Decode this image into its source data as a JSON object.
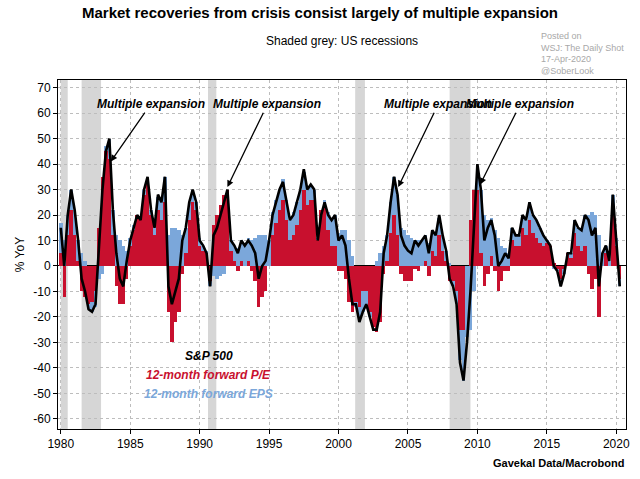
{
  "chart_data": {
    "type": "bar",
    "title": "Market recoveries from crisis consist largely of multiple expansion",
    "subtitle": "Shaded grey: US recessions",
    "y_label": "% YoY",
    "source": "Gavekal Data/Macrobond",
    "watermark": [
      "Posted on",
      "WSJ: The Daily Shot",
      "17-Apr-2020",
      "@SoberLook"
    ],
    "stacked": true,
    "grid": true,
    "x": [
      1980,
      1980.25,
      1980.5,
      1980.75,
      1981,
      1981.25,
      1981.5,
      1981.75,
      1982,
      1982.25,
      1982.5,
      1982.75,
      1983,
      1983.25,
      1983.5,
      1983.75,
      1984,
      1984.25,
      1984.5,
      1984.75,
      1985,
      1985.25,
      1985.5,
      1985.75,
      1986,
      1986.25,
      1986.5,
      1986.75,
      1987,
      1987.25,
      1987.5,
      1987.75,
      1988,
      1988.25,
      1988.5,
      1988.75,
      1989,
      1989.25,
      1989.5,
      1989.75,
      1990,
      1990.25,
      1990.5,
      1990.75,
      1991,
      1991.25,
      1991.5,
      1991.75,
      1992,
      1992.25,
      1992.5,
      1992.75,
      1993,
      1993.25,
      1993.5,
      1993.75,
      1994,
      1994.25,
      1994.5,
      1994.75,
      1995,
      1995.25,
      1995.5,
      1995.75,
      1996,
      1996.25,
      1996.5,
      1996.75,
      1997,
      1997.25,
      1997.5,
      1997.75,
      1998,
      1998.25,
      1998.5,
      1998.75,
      1999,
      1999.25,
      1999.5,
      1999.75,
      2000,
      2000.25,
      2000.5,
      2000.75,
      2001,
      2001.25,
      2001.5,
      2001.75,
      2002,
      2002.25,
      2002.5,
      2002.75,
      2003,
      2003.25,
      2003.5,
      2003.75,
      2004,
      2004.25,
      2004.5,
      2004.75,
      2005,
      2005.25,
      2005.5,
      2005.75,
      2006,
      2006.25,
      2006.5,
      2006.75,
      2007,
      2007.25,
      2007.5,
      2007.75,
      2008,
      2008.25,
      2008.5,
      2008.75,
      2009,
      2009.25,
      2009.5,
      2009.75,
      2010,
      2010.25,
      2010.5,
      2010.75,
      2011,
      2011.25,
      2011.5,
      2011.75,
      2012,
      2012.25,
      2012.5,
      2012.75,
      2013,
      2013.25,
      2013.5,
      2013.75,
      2014,
      2014.25,
      2014.5,
      2014.75,
      2015,
      2015.25,
      2015.5,
      2015.75,
      2016,
      2016.25,
      2016.5,
      2016.75,
      2017,
      2017.25,
      2017.5,
      2017.75,
      2018,
      2018.25,
      2018.5,
      2018.75,
      2019,
      2019.25,
      2019.5,
      2019.75,
      2020,
      2020.25
    ],
    "series": [
      {
        "name": "S&P 500",
        "type": "line",
        "color": "#000000",
        "values": [
          15,
          0,
          20,
          30,
          22,
          10,
          -5,
          -10,
          -17,
          -18,
          -15,
          10,
          30,
          45,
          50,
          22,
          5,
          -5,
          -8,
          2,
          10,
          15,
          20,
          18,
          30,
          35,
          22,
          15,
          28,
          25,
          35,
          -8,
          -15,
          -10,
          -5,
          10,
          15,
          25,
          30,
          25,
          10,
          8,
          5,
          -8,
          12,
          15,
          20,
          25,
          30,
          10,
          8,
          5,
          10,
          8,
          10,
          8,
          5,
          -5,
          0,
          2,
          10,
          20,
          25,
          30,
          33,
          25,
          18,
          20,
          25,
          30,
          38,
          30,
          32,
          30,
          10,
          20,
          25,
          20,
          18,
          20,
          10,
          12,
          8,
          -5,
          -15,
          -15,
          -22,
          -18,
          -15,
          -20,
          -25,
          -25,
          -18,
          5,
          12,
          25,
          35,
          28,
          12,
          8,
          6,
          5,
          10,
          8,
          10,
          12,
          5,
          14,
          12,
          20,
          12,
          6,
          -5,
          -8,
          -15,
          -38,
          -45,
          -30,
          -10,
          15,
          40,
          30,
          10,
          15,
          18,
          12,
          0,
          2,
          5,
          3,
          15,
          12,
          12,
          20,
          18,
          25,
          20,
          18,
          15,
          12,
          10,
          8,
          0,
          -2,
          -8,
          -3,
          5,
          5,
          18,
          15,
          14,
          20,
          18,
          12,
          15,
          -8,
          5,
          8,
          2,
          28,
          10,
          -8
        ]
      },
      {
        "name": "12-month forward P/E",
        "type": "bar",
        "color": "#c8102e",
        "values": [
          5,
          -12,
          12,
          22,
          12,
          2,
          -10,
          -12,
          -15,
          -14,
          -10,
          15,
          35,
          45,
          42,
          12,
          -8,
          -15,
          -15,
          -5,
          8,
          14,
          20,
          18,
          28,
          32,
          20,
          12,
          22,
          18,
          25,
          -18,
          -30,
          -22,
          -18,
          -3,
          5,
          18,
          25,
          22,
          8,
          6,
          5,
          -6,
          16,
          20,
          24,
          28,
          30,
          6,
          2,
          -2,
          2,
          0,
          2,
          -2,
          -6,
          -16,
          -12,
          -10,
          0,
          12,
          17,
          22,
          26,
          18,
          10,
          12,
          16,
          22,
          30,
          24,
          26,
          26,
          10,
          22,
          23,
          14,
          8,
          8,
          -2,
          -2,
          -5,
          -14,
          -18,
          -14,
          -16,
          -10,
          -10,
          -18,
          -24,
          -26,
          -22,
          -3,
          2,
          13,
          20,
          12,
          -3,
          -6,
          -6,
          -6,
          -1,
          -2,
          0,
          2,
          -4,
          6,
          4,
          12,
          6,
          2,
          -6,
          -6,
          -10,
          -25,
          -25,
          0,
          18,
          30,
          30,
          5,
          -8,
          -3,
          4,
          -2,
          -10,
          -6,
          -2,
          -2,
          10,
          8,
          8,
          15,
          12,
          18,
          13,
          11,
          9,
          8,
          9,
          8,
          1,
          -1,
          -5,
          -1,
          5,
          3,
          13,
          8,
          6,
          8,
          -3,
          -9,
          -5,
          -20,
          0,
          5,
          0,
          22,
          8,
          -5
        ]
      },
      {
        "name": "12-month forward EPS",
        "type": "bar",
        "color": "#7ba7da",
        "values": [
          12,
          10,
          8,
          8,
          10,
          8,
          5,
          2,
          -2,
          -4,
          -6,
          -5,
          -3,
          2,
          8,
          10,
          12,
          10,
          8,
          6,
          3,
          2,
          0,
          1,
          2,
          2,
          2,
          3,
          5,
          7,
          10,
          12,
          15,
          15,
          14,
          12,
          10,
          7,
          5,
          3,
          3,
          2,
          1,
          -2,
          -4,
          -5,
          -4,
          -3,
          0,
          4,
          6,
          7,
          8,
          9,
          9,
          10,
          11,
          12,
          12,
          12,
          10,
          9,
          9,
          8,
          8,
          8,
          8,
          9,
          9,
          8,
          7,
          6,
          5,
          4,
          1,
          0,
          3,
          7,
          10,
          12,
          13,
          14,
          14,
          10,
          4,
          -2,
          -6,
          -8,
          -5,
          -2,
          0,
          2,
          5,
          8,
          10,
          12,
          15,
          16,
          15,
          14,
          12,
          11,
          10,
          10,
          10,
          10,
          9,
          8,
          8,
          7,
          6,
          4,
          1,
          -2,
          -5,
          -12,
          -20,
          -28,
          -25,
          -10,
          8,
          25,
          20,
          18,
          15,
          14,
          11,
          8,
          7,
          5,
          5,
          4,
          4,
          5,
          6,
          7,
          7,
          7,
          6,
          4,
          1,
          0,
          -1,
          -1,
          -3,
          -2,
          0,
          2,
          5,
          7,
          8,
          12,
          20,
          21,
          20,
          12,
          5,
          3,
          2,
          6,
          3,
          -3
        ]
      }
    ],
    "recessions": [
      [
        1980,
        1980.5
      ],
      [
        1981.5,
        1982.9
      ],
      [
        1990.6,
        1991.2
      ],
      [
        2001.2,
        2001.9
      ],
      [
        2008,
        2009.5
      ]
    ],
    "annotations": [
      {
        "text": "Multiple expansion",
        "x": 1983.6,
        "y": 41
      },
      {
        "text": "Multiple expansion",
        "x": 1992,
        "y": 31
      },
      {
        "text": "Multiple expansion",
        "x": 2004.3,
        "y": 31
      },
      {
        "text": "Multiple expansion",
        "x": 2010.2,
        "y": 32
      }
    ],
    "xlim": [
      1979.8,
      2020.7
    ],
    "xticks": [
      1980,
      1985,
      1990,
      1995,
      2000,
      2005,
      2010,
      2015,
      2020
    ],
    "ylim": [
      -64,
      73
    ],
    "yticks": [
      -60,
      -50,
      -40,
      -30,
      -20,
      -10,
      0,
      10,
      20,
      30,
      40,
      50,
      60,
      70
    ]
  }
}
